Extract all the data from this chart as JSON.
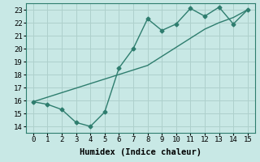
{
  "xlabel": "Humidex (Indice chaleur)",
  "ylabel": "",
  "x": [
    0,
    1,
    2,
    3,
    4,
    5,
    6,
    7,
    8,
    9,
    10,
    11,
    12,
    13,
    14,
    15
  ],
  "y_zigzag": [
    15.9,
    15.7,
    15.3,
    14.3,
    14.0,
    15.1,
    18.5,
    20.0,
    22.3,
    21.4,
    21.9,
    23.1,
    22.5,
    23.2,
    21.9,
    23.0
  ],
  "y_trend": [
    15.9,
    16.25,
    16.6,
    16.95,
    17.3,
    17.65,
    18.0,
    18.35,
    18.7,
    19.4,
    20.1,
    20.8,
    21.5,
    22.0,
    22.4,
    23.0
  ],
  "line_color": "#2e7d6e",
  "bg_color": "#c8e8e5",
  "grid_color": "#aed0cc",
  "xlim": [
    -0.5,
    15.5
  ],
  "ylim": [
    13.5,
    23.5
  ],
  "yticks": [
    14,
    15,
    16,
    17,
    18,
    19,
    20,
    21,
    22,
    23
  ],
  "xticks": [
    0,
    1,
    2,
    3,
    4,
    5,
    6,
    7,
    8,
    9,
    10,
    11,
    12,
    13,
    14,
    15
  ],
  "marker": "D",
  "markersize": 2.5,
  "linewidth": 1.0,
  "fontsize_label": 7.5,
  "fontsize_tick": 6.5
}
